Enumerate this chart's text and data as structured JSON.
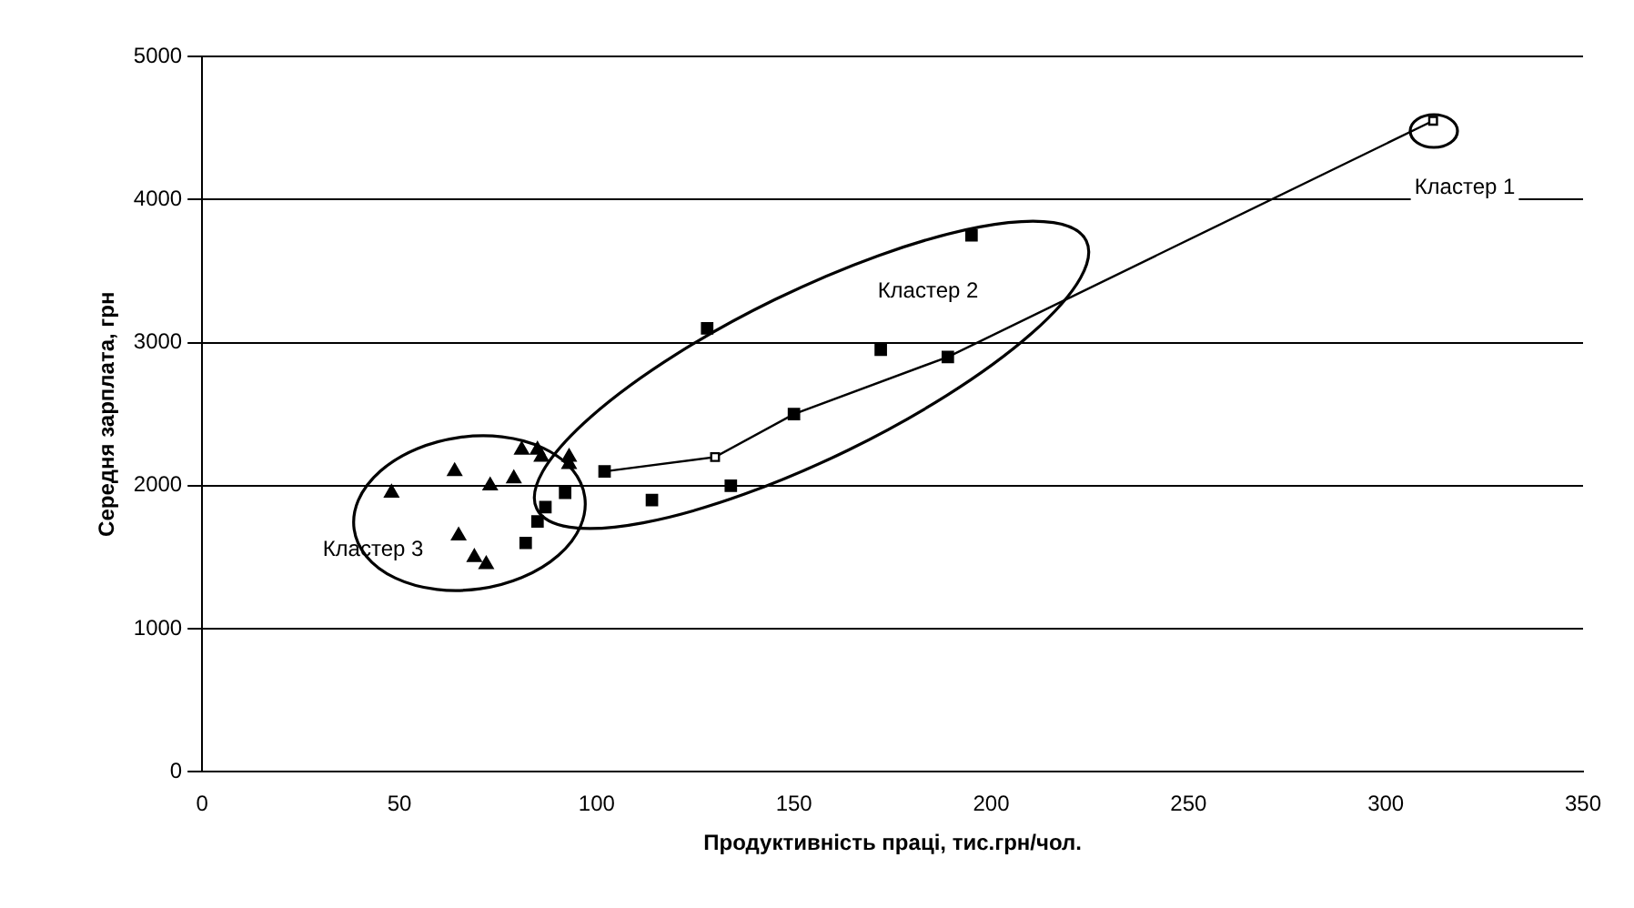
{
  "chart_data": {
    "type": "scatter",
    "xlabel": "Продуктивність праці, тис.грн/чол.",
    "ylabel": "Середня зарплата, грн",
    "xlim": [
      0,
      350
    ],
    "xticks": [
      0,
      50,
      100,
      150,
      200,
      250,
      300,
      350
    ],
    "ylim": [
      0,
      5000
    ],
    "yticks": [
      0,
      1000,
      2000,
      3000,
      4000,
      5000
    ],
    "grid": "y",
    "legend": false,
    "series": [
      {
        "type": "scatter",
        "color": "#000000",
        "marker": "triangle",
        "x": [
          48,
          64,
          73,
          79,
          81,
          85,
          86,
          93,
          93,
          65,
          69,
          72
        ],
        "values": [
          1950,
          2100,
          2000,
          2050,
          2250,
          2250,
          2200,
          2200,
          2150,
          1650,
          1500,
          1450
        ]
      },
      {
        "type": "scatter",
        "color": "#000000",
        "marker": "square",
        "x": [
          102,
          92,
          87,
          85,
          82,
          114,
          134,
          128,
          172,
          189,
          150,
          195
        ],
        "values": [
          2100,
          1950,
          1850,
          1750,
          1600,
          1900,
          2000,
          3100,
          2950,
          2900,
          2500,
          3750
        ]
      },
      {
        "type": "line",
        "color": "#000000",
        "marker": "square",
        "x": [
          102,
          130,
          150,
          189,
          312
        ],
        "values": [
          2100,
          2200,
          2500,
          2900,
          4550
        ]
      }
    ],
    "annotations": [
      "Кластер 1",
      "Кластер 2",
      "Кластер 3"
    ]
  }
}
